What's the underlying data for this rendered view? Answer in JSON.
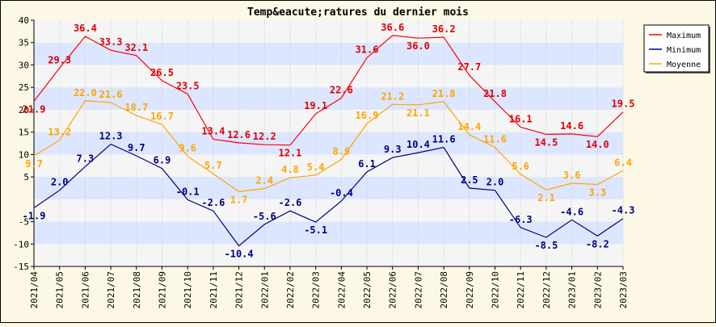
{
  "chart_data": {
    "type": "line",
    "title": "Temp&eacute;ratures du dernier mois",
    "categories": [
      "2021/04",
      "2021/05",
      "2021/06",
      "2021/07",
      "2021/08",
      "2021/09",
      "2021/10",
      "2021/11",
      "2021/12",
      "2022/01",
      "2022/02",
      "2022/03",
      "2022/04",
      "2022/05",
      "2022/06",
      "2022/07",
      "2022/08",
      "2022/09",
      "2022/10",
      "2022/11",
      "2022/12",
      "2023/01",
      "2023/02",
      "2023/03"
    ],
    "y_ticks": [
      -15,
      -10,
      -5,
      5,
      10,
      15,
      20,
      25,
      30,
      35,
      40
    ],
    "ylim": [
      -15,
      40
    ],
    "grid": true,
    "legend_position": "top-right",
    "series": [
      {
        "name": "Maximum",
        "color": "#ff0000",
        "label_color": "#e00000",
        "values": [
          21.9,
          29.3,
          36.4,
          33.3,
          32.1,
          26.5,
          23.5,
          13.4,
          12.6,
          12.2,
          12.1,
          19.1,
          22.6,
          31.6,
          36.6,
          36.0,
          36.2,
          27.7,
          21.8,
          16.1,
          14.5,
          14.6,
          14.0,
          19.5
        ],
        "labels": [
          "21.9",
          "29.3",
          "36.4",
          "33.3",
          "32.1",
          "26.5",
          "23.5",
          "13.4",
          "12.6",
          "12.2",
          "12.1",
          "19.1",
          "22.6",
          "31.6",
          "36.6",
          "36.0",
          "36.2",
          "27.7",
          "21.8",
          "16.1",
          "14.5",
          "14.6",
          "14.0",
          "19.5"
        ]
      },
      {
        "name": "Minimum",
        "color": "#000080",
        "label_color": "#000080",
        "values": [
          -1.9,
          2.0,
          7.3,
          12.3,
          9.7,
          6.9,
          -0.1,
          -2.6,
          -10.4,
          -5.6,
          -2.6,
          -5.1,
          -0.4,
          6.1,
          9.3,
          10.4,
          11.6,
          2.5,
          2.0,
          -6.3,
          -8.5,
          -4.6,
          -8.2,
          -4.3
        ],
        "labels": [
          "-1.9",
          "2.0",
          "7.3",
          "12.3",
          "9.7",
          "6.9",
          "-0.1",
          "-2.6",
          "-10.4",
          "-5.6",
          "-2.6",
          "-5.1",
          "-0.4",
          "6.1",
          "9.3",
          "10.4",
          "11.6",
          "2.5",
          "2.0",
          "-6.3",
          "-8.5",
          "-4.6",
          "-8.2",
          "-4.3"
        ]
      },
      {
        "name": "Moyenne",
        "color": "#ffa500",
        "label_color": "#ffa500",
        "values": [
          9.7,
          13.2,
          22.0,
          21.6,
          18.7,
          16.7,
          9.6,
          5.7,
          1.7,
          2.4,
          4.8,
          5.4,
          8.9,
          16.9,
          21.2,
          21.1,
          21.8,
          14.4,
          11.6,
          5.6,
          2.1,
          3.6,
          3.3,
          6.4
        ],
        "labels": [
          "9.7",
          "13.2",
          "22.0",
          "21.6",
          "18.7",
          "16.7",
          "9.6",
          "5.7",
          "1.7",
          "2.4",
          "4.8",
          "5.4",
          "8.9",
          "16.9",
          "21.2",
          "21.1",
          "21.8",
          "14.4",
          "11.6",
          "5.6",
          "2.1",
          "3.6",
          "3.3",
          "6.4"
        ]
      }
    ]
  },
  "colors": {
    "background": "#fcf8e5",
    "plot_band_light": "#f5f5f5",
    "plot_band_dark": "#dde6ff",
    "axis": "#000000"
  }
}
